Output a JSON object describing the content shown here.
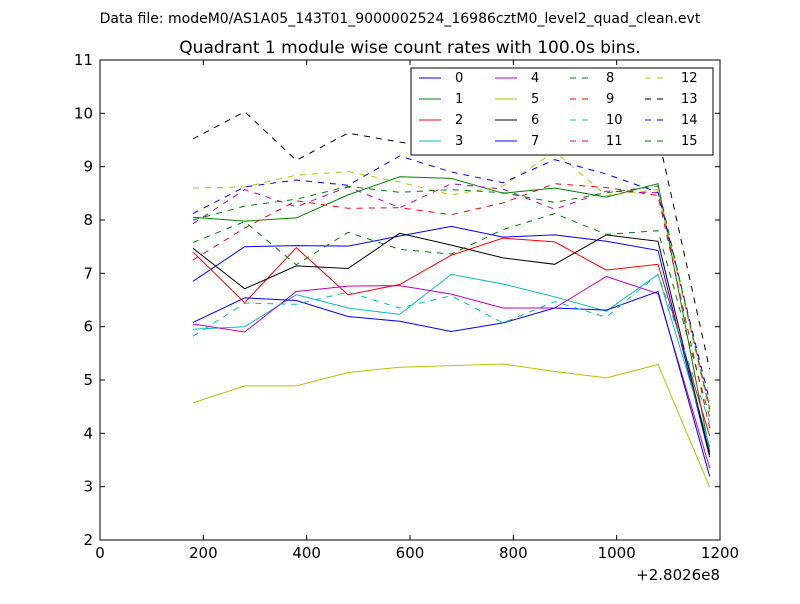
{
  "suptitle": "Data file: modeM0/AS1A05_143T01_9000002524_16986cztM0_level2_quad_clean.evt",
  "chart_data": {
    "type": "line",
    "title": "Quadrant 1 module wise count rates with 100.0s bins.",
    "xlabel": "",
    "ylabel": "",
    "x_offset_label": "+2.8026e8",
    "xlim": [
      0,
      1200
    ],
    "ylim": [
      2,
      11
    ],
    "xticks": [
      0,
      200,
      400,
      600,
      800,
      1000,
      1200
    ],
    "yticks": [
      2,
      3,
      4,
      5,
      6,
      7,
      8,
      9,
      10,
      11
    ],
    "x": [
      180,
      280,
      380,
      480,
      580,
      680,
      780,
      880,
      980,
      1080,
      1180
    ],
    "legend_position": "top-right",
    "series": [
      {
        "name": "0",
        "color": "#0000ff",
        "dash": "solid",
        "values": [
          6.85,
          7.5,
          7.52,
          7.51,
          7.7,
          7.88,
          7.68,
          7.72,
          7.6,
          7.43,
          3.55
        ]
      },
      {
        "name": "1",
        "color": "#008000",
        "dash": "solid",
        "values": [
          8.05,
          7.98,
          8.04,
          8.47,
          8.81,
          8.78,
          8.5,
          8.6,
          8.43,
          8.68,
          3.65
        ]
      },
      {
        "name": "2",
        "color": "#ff0000",
        "dash": "solid",
        "values": [
          7.4,
          6.45,
          7.48,
          6.6,
          6.79,
          7.34,
          7.66,
          7.59,
          7.06,
          7.17,
          3.95
        ]
      },
      {
        "name": "3",
        "color": "#00bfbf",
        "dash": "solid",
        "values": [
          5.95,
          6.0,
          6.6,
          6.35,
          6.23,
          6.98,
          6.8,
          6.56,
          6.29,
          6.98,
          3.75
        ]
      },
      {
        "name": "4",
        "color": "#bf00bf",
        "dash": "solid",
        "values": [
          6.05,
          5.9,
          6.66,
          6.76,
          6.77,
          6.61,
          6.35,
          6.35,
          6.94,
          6.62,
          3.35
        ]
      },
      {
        "name": "5",
        "color": "#bfbf00",
        "dash": "solid",
        "values": [
          4.57,
          4.89,
          4.89,
          5.14,
          5.24,
          5.27,
          5.3,
          5.16,
          5.04,
          5.29,
          2.99
        ]
      },
      {
        "name": "6",
        "color": "#000000",
        "dash": "solid",
        "values": [
          7.47,
          6.71,
          7.14,
          7.09,
          7.75,
          7.53,
          7.29,
          7.17,
          7.72,
          7.6,
          3.6
        ]
      },
      {
        "name": "7",
        "color": "#0000ff",
        "dash": "solid",
        "values": [
          6.08,
          6.54,
          6.49,
          6.19,
          6.1,
          5.91,
          6.07,
          6.35,
          6.31,
          6.66,
          3.19
        ]
      },
      {
        "name": "8",
        "color": "#008000",
        "dash": "dashed",
        "values": [
          7.58,
          7.97,
          7.16,
          7.77,
          7.45,
          7.36,
          7.82,
          8.12,
          7.73,
          7.8,
          4.3
        ]
      },
      {
        "name": "9",
        "color": "#ff0000",
        "dash": "dashed",
        "values": [
          7.25,
          7.85,
          8.36,
          8.22,
          8.23,
          8.1,
          8.32,
          8.68,
          8.61,
          8.46,
          4.1
        ]
      },
      {
        "name": "10",
        "color": "#00bfbf",
        "dash": "dashed",
        "values": [
          5.82,
          6.44,
          6.42,
          6.65,
          6.35,
          6.58,
          6.07,
          6.47,
          6.18,
          6.98,
          4.2
        ]
      },
      {
        "name": "11",
        "color": "#bf00bf",
        "dash": "dashed",
        "values": [
          7.93,
          8.57,
          8.25,
          8.62,
          8.23,
          8.68,
          8.58,
          8.2,
          8.54,
          8.51,
          4.5
        ]
      },
      {
        "name": "12",
        "color": "#bfbf00",
        "dash": "dashed",
        "values": [
          8.6,
          8.62,
          8.84,
          8.91,
          8.71,
          8.47,
          8.64,
          9.28,
          8.46,
          8.57,
          4.4
        ]
      },
      {
        "name": "13",
        "color": "#000000",
        "dash": "dashed",
        "values": [
          9.52,
          10.03,
          9.12,
          9.63,
          9.46,
          9.33,
          9.38,
          9.8,
          9.53,
          9.59,
          5.2
        ]
      },
      {
        "name": "14",
        "color": "#0000ff",
        "dash": "dashed",
        "values": [
          8.12,
          8.62,
          8.75,
          8.65,
          9.2,
          8.9,
          8.7,
          9.13,
          8.86,
          8.52,
          4.6
        ]
      },
      {
        "name": "15",
        "color": "#008000",
        "dash": "dashed",
        "values": [
          8.0,
          8.26,
          8.39,
          8.63,
          8.52,
          8.57,
          8.51,
          8.33,
          8.51,
          8.64,
          4.45
        ]
      }
    ]
  }
}
